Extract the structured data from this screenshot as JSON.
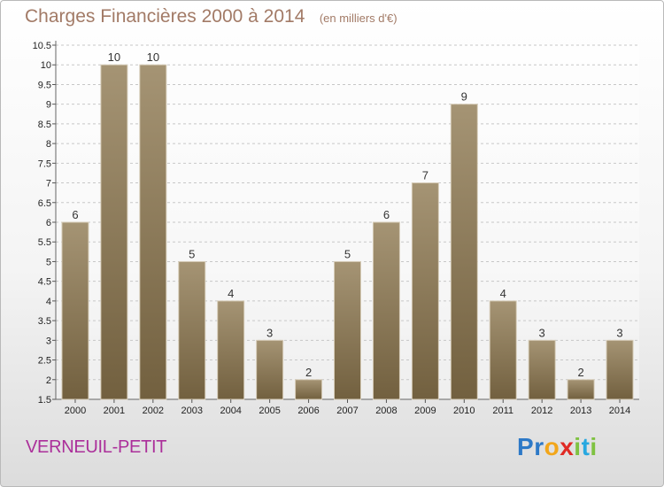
{
  "chart_data": {
    "type": "bar",
    "title": "Charges Financières 2000 à 2014",
    "subtitle": "(en milliers d'€)",
    "categories": [
      "2000",
      "2001",
      "2002",
      "2003",
      "2004",
      "2005",
      "2006",
      "2007",
      "2008",
      "2009",
      "2010",
      "2011",
      "2012",
      "2013",
      "2014"
    ],
    "values": [
      6,
      10,
      10,
      5,
      4,
      3,
      2,
      5,
      6,
      7,
      9,
      4,
      3,
      2,
      3
    ],
    "ylim": [
      1.5,
      10.5
    ],
    "yticks": [
      "1.5",
      "2",
      "2.5",
      "3",
      "3.5",
      "4",
      "4.5",
      "5",
      "5.5",
      "6",
      "6.5",
      "7",
      "7.5",
      "8",
      "8.5",
      "9",
      "9.5",
      "10",
      "10.5"
    ],
    "grid": true,
    "colors": {
      "bar": "#8e7d63",
      "bar_top": "#a59474",
      "bar_bottom": "#72603f",
      "grid": "#c7c7c7"
    }
  },
  "footer": {
    "place": "VERNEUIL-PETIT",
    "logo": [
      {
        "char": "P",
        "color": "#2d79c7"
      },
      {
        "char": "r",
        "color": "#2d79c7"
      },
      {
        "char": "o",
        "color": "#f2a61a"
      },
      {
        "char": "x",
        "color": "#e02a24"
      },
      {
        "char": "i",
        "color": "#7fc241"
      },
      {
        "char": "t",
        "color": "#28a8e0"
      },
      {
        "char": "i",
        "color": "#7fc241"
      }
    ]
  }
}
